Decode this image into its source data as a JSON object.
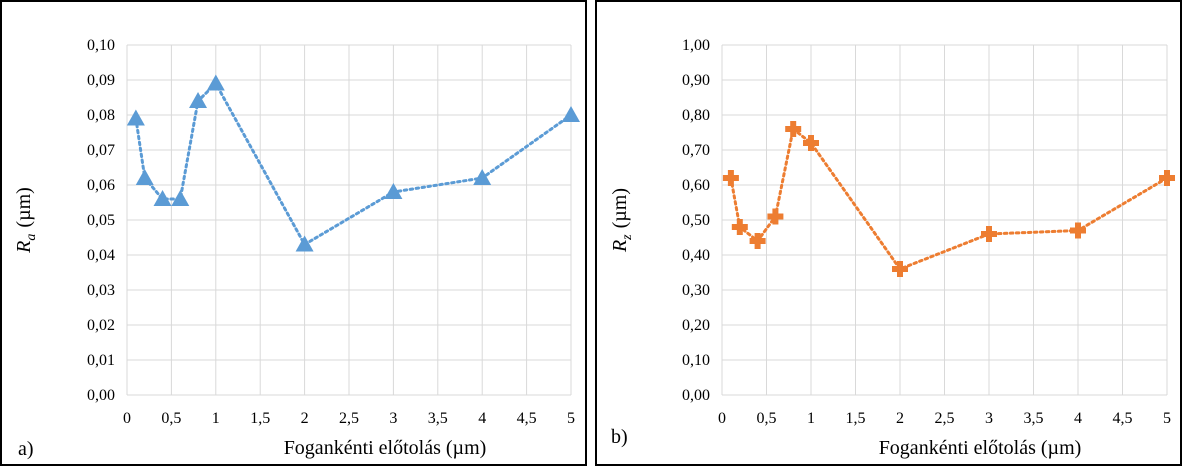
{
  "chart_data": [
    {
      "type": "line",
      "panel_label": "a)",
      "xlabel": "Fogankénti előtolás (µm)",
      "ylabel_symbol": "R",
      "ylabel_subscript": "a",
      "ylabel_unit": "(µm)",
      "xlim": [
        0,
        5
      ],
      "ylim": [
        0,
        0.1
      ],
      "x_ticks": [
        "0",
        "0,5",
        "1",
        "1,5",
        "2",
        "2,5",
        "3",
        "3,5",
        "4",
        "4,5",
        "5"
      ],
      "y_ticks": [
        "0,00",
        "0,01",
        "0,02",
        "0,03",
        "0,04",
        "0,05",
        "0,06",
        "0,07",
        "0,08",
        "0,09",
        "0,10"
      ],
      "grid": true,
      "marker": "triangle",
      "line_style": "dotted",
      "color": "#5b9bd5",
      "series": [
        {
          "x": [
            0.1,
            0.2,
            0.4,
            0.6,
            0.8,
            1,
            2,
            3,
            4,
            5
          ],
          "y": [
            0.079,
            0.062,
            0.056,
            0.056,
            0.084,
            0.089,
            0.043,
            0.058,
            0.062,
            0.08
          ]
        }
      ]
    },
    {
      "type": "line",
      "panel_label": "b)",
      "xlabel": "Fogankénti előtolás (µm)",
      "ylabel_symbol": "R",
      "ylabel_subscript": "z",
      "ylabel_unit": "(µm)",
      "xlim": [
        0,
        5
      ],
      "ylim": [
        0,
        1.0
      ],
      "x_ticks": [
        "0",
        "0,5",
        "1",
        "1,5",
        "2",
        "2,5",
        "3",
        "3,5",
        "4",
        "4,5",
        "5"
      ],
      "y_ticks": [
        "0,00",
        "0,10",
        "0,20",
        "0,30",
        "0,40",
        "0,50",
        "0,60",
        "0,70",
        "0,80",
        "0,90",
        "1,00"
      ],
      "grid": true,
      "marker": "cross",
      "line_style": "dotted",
      "color": "#ed7d31",
      "series": [
        {
          "x": [
            0.1,
            0.2,
            0.4,
            0.6,
            0.8,
            1,
            2,
            3,
            4,
            5
          ],
          "y": [
            0.62,
            0.48,
            0.44,
            0.51,
            0.76,
            0.72,
            0.36,
            0.46,
            0.47,
            0.62
          ]
        }
      ]
    }
  ]
}
